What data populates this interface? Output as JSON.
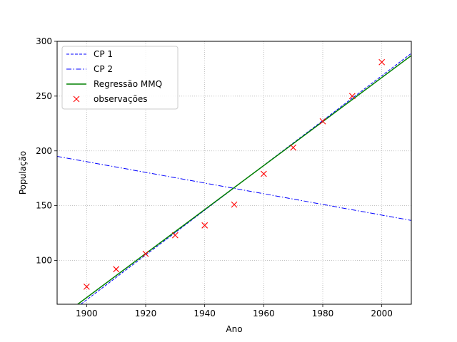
{
  "chart_data": {
    "type": "line",
    "title": "",
    "xlabel": "Ano",
    "ylabel": "População",
    "xlim": [
      1890,
      2010
    ],
    "ylim": [
      60,
      300
    ],
    "xticks": [
      1900,
      1920,
      1940,
      1960,
      1980,
      2000
    ],
    "yticks": [
      100,
      150,
      200,
      250,
      300
    ],
    "grid": true,
    "legend_position": "top-left",
    "series": [
      {
        "name": "CP 1",
        "kind": "line",
        "style": "dashed",
        "color": "#0000ff",
        "x": [
          1890,
          2010
        ],
        "y": [
          43.6,
          289.0
        ]
      },
      {
        "name": "CP 2",
        "kind": "line",
        "style": "dashdot",
        "color": "#0000ff",
        "x": [
          1890,
          2010
        ],
        "y": [
          195.0,
          136.5
        ]
      },
      {
        "name": "Regressão MMQ",
        "kind": "line",
        "style": "solid",
        "color": "#008000",
        "x": [
          1890,
          2010
        ],
        "y": [
          46.0,
          287.0
        ]
      },
      {
        "name": "observações",
        "kind": "scatter",
        "marker": "x",
        "color": "#ff0000",
        "x": [
          1900,
          1910,
          1920,
          1930,
          1940,
          1950,
          1960,
          1970,
          1980,
          1990,
          2000
        ],
        "y": [
          76,
          92,
          106,
          123,
          132,
          151,
          179,
          203,
          227,
          250,
          281
        ]
      }
    ]
  }
}
